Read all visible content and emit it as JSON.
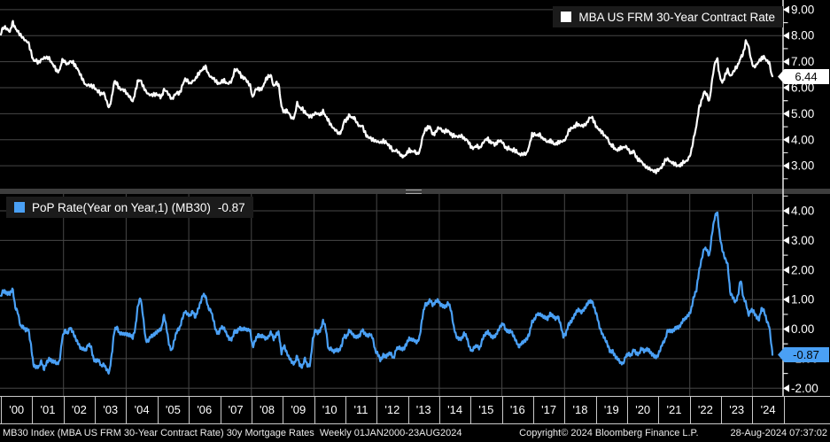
{
  "colors": {
    "background": "#000000",
    "grid_horizontal": "#474747",
    "grid_vertical": "#474747",
    "axis_line": "#e8e8e8",
    "tick_text": "#ffffff",
    "top_line": "#ffffff",
    "bottom_line": "#4aa0f5",
    "legend_bg": "#1b1b1b",
    "top_badge_bg": "#ffffff",
    "top_badge_text": "#000000",
    "bottom_badge_bg": "#4aa0f5",
    "bottom_badge_text": "#000000"
  },
  "chart_data": [
    {
      "type": "line",
      "panel": "top",
      "title": "MBA US FRM 30-Year Contract Rate",
      "x_range": [
        2000.0,
        2024.64
      ],
      "ylim": [
        2.12,
        9.37
      ],
      "yticks": [
        9.0,
        8.0,
        7.0,
        6.0,
        5.0,
        4.0,
        3.0
      ],
      "grid": "horizontal",
      "legend_position": "top-right",
      "series": [
        {
          "name": "MBA US FRM 30-Year Contract Rate",
          "color": "#ffffff",
          "frequency": "monthly-estimates-of-weekly-series",
          "start_year": 2000,
          "last_value": 6.44,
          "last_value_label": "6.44",
          "values": [
            8.25,
            8.33,
            8.24,
            8.15,
            8.52,
            8.29,
            8.15,
            8.03,
            7.91,
            7.8,
            7.75,
            7.38,
            7.03,
            7.05,
            6.95,
            7.08,
            7.14,
            7.16,
            7.13,
            6.95,
            6.82,
            6.62,
            6.66,
            7.07,
            7.0,
            6.89,
            7.01,
            6.99,
            6.85,
            6.7,
            6.49,
            6.29,
            6.09,
            6.11,
            6.07,
            6.05,
            5.92,
            5.84,
            5.75,
            5.81,
            5.48,
            5.21,
            5.63,
            6.26,
            6.15,
            5.95,
            5.93,
            5.88,
            5.74,
            5.64,
            5.45,
            5.83,
            6.27,
            6.29,
            6.06,
            5.87,
            5.75,
            5.72,
            5.73,
            5.75,
            5.71,
            5.63,
            5.93,
            5.86,
            5.72,
            5.55,
            5.7,
            5.82,
            5.77,
            6.07,
            6.33,
            6.27,
            6.15,
            6.25,
            6.32,
            6.51,
            6.62,
            6.73,
            6.8,
            6.52,
            6.4,
            6.36,
            6.24,
            6.14,
            6.22,
            6.29,
            6.16,
            6.18,
            6.26,
            6.66,
            6.7,
            6.57,
            6.38,
            6.38,
            6.21,
            6.1,
            5.6,
            5.92,
            5.97,
            5.92,
            6.04,
            6.32,
            6.43,
            6.48,
            6.04,
            6.2,
            6.09,
            5.29,
            5.05,
            5.13,
            5.0,
            4.81,
            4.86,
            5.42,
            5.22,
            5.19,
            5.06,
            4.95,
            4.88,
            4.93,
            5.03,
            4.99,
            4.97,
            5.1,
            4.89,
            4.74,
            4.56,
            4.43,
            4.35,
            4.23,
            4.3,
            4.71,
            4.76,
            4.95,
            4.84,
            4.84,
            4.64,
            4.51,
            4.55,
            4.27,
            4.11,
            4.07,
            4.0,
            3.96,
            3.92,
            3.89,
            3.95,
            3.91,
            3.8,
            3.68,
            3.55,
            3.6,
            3.5,
            3.38,
            3.35,
            3.47,
            3.61,
            3.53,
            3.57,
            3.45,
            3.54,
            4.07,
            4.37,
            4.46,
            4.49,
            4.19,
            4.26,
            4.46,
            4.43,
            4.3,
            4.34,
            4.34,
            4.19,
            4.16,
            4.13,
            4.12,
            4.16,
            4.04,
            4.0,
            3.86,
            3.67,
            3.71,
            3.77,
            3.67,
            3.84,
            3.98,
            4.05,
            3.91,
            3.89,
            3.8,
            3.94,
            3.96,
            3.87,
            3.66,
            3.69,
            3.61,
            3.6,
            3.57,
            3.44,
            3.44,
            3.46,
            3.47,
            3.77,
            4.2,
            4.2,
            4.17,
            4.2,
            4.05,
            4.01,
            3.9,
            3.97,
            3.88,
            3.81,
            3.9,
            3.92,
            3.95,
            4.03,
            4.33,
            4.44,
            4.47,
            4.59,
            4.57,
            4.53,
            4.55,
            4.63,
            4.83,
            4.87,
            4.64,
            4.46,
            4.37,
            4.27,
            4.14,
            4.07,
            3.8,
            3.77,
            3.62,
            3.61,
            3.69,
            3.7,
            3.74,
            3.62,
            3.47,
            3.58,
            3.31,
            3.23,
            3.16,
            3.02,
            2.94,
            2.89,
            2.83,
            2.78,
            2.8,
            2.88,
            2.98,
            3.2,
            3.27,
            3.15,
            3.11,
            3.05,
            2.99,
            3.03,
            3.14,
            3.16,
            3.27,
            3.52,
            4.06,
            4.5,
            5.2,
            5.49,
            5.85,
            5.74,
            5.45,
            6.25,
            6.9,
            7.14,
            6.42,
            6.19,
            6.45,
            6.71,
            6.43,
            6.57,
            6.75,
            6.87,
            7.16,
            7.31,
            7.8,
            7.61,
            7.07,
            6.78,
            6.87,
            7.02,
            7.13,
            7.18,
            7.03,
            6.95,
            6.44
          ]
        }
      ]
    },
    {
      "type": "line",
      "panel": "bottom",
      "title": "PoP Rate(Year on Year,1) (MB30)",
      "x_range": [
        2000.0,
        2024.64
      ],
      "ylim": [
        -2.26,
        4.57
      ],
      "yticks": [
        4.0,
        3.0,
        2.0,
        1.0,
        0.0,
        -1.0,
        -2.0
      ],
      "grid": "horizontal+vertical-even-years",
      "legend_position": "top-left",
      "series": [
        {
          "name": "PoP Rate(Year on Year,1) (MB30)",
          "color": "#4aa0f5",
          "derivation": "rate[t] minus rate[t - 1 year] of the top series",
          "prior_year_values_1999": [
            6.99,
            7.05,
            7.04,
            6.95,
            7.15,
            7.55,
            7.58,
            7.94,
            7.82,
            7.85,
            7.74,
            7.91
          ],
          "last_value": -0.87,
          "last_value_label": "-0.87"
        }
      ]
    }
  ],
  "x_axis": {
    "labels": [
      "'00",
      "'01",
      "'02",
      "'03",
      "'04",
      "'05",
      "'06",
      "'07",
      "'08",
      "'09",
      "'10",
      "'11",
      "'12",
      "'13",
      "'14",
      "'15",
      "'16",
      "'17",
      "'18",
      "'19",
      "'20",
      "'21",
      "'22",
      "'23",
      "'24"
    ]
  },
  "footer": {
    "left": "MB30 Index (MBA US FRM 30-Year Contract Rate) 30y Mortgage Rates  Weekly 01JAN2000-23AUG2024",
    "center": "Copyright© 2024 Bloomberg Finance L.P.",
    "right": "28-Aug-2024 07:37:02"
  }
}
